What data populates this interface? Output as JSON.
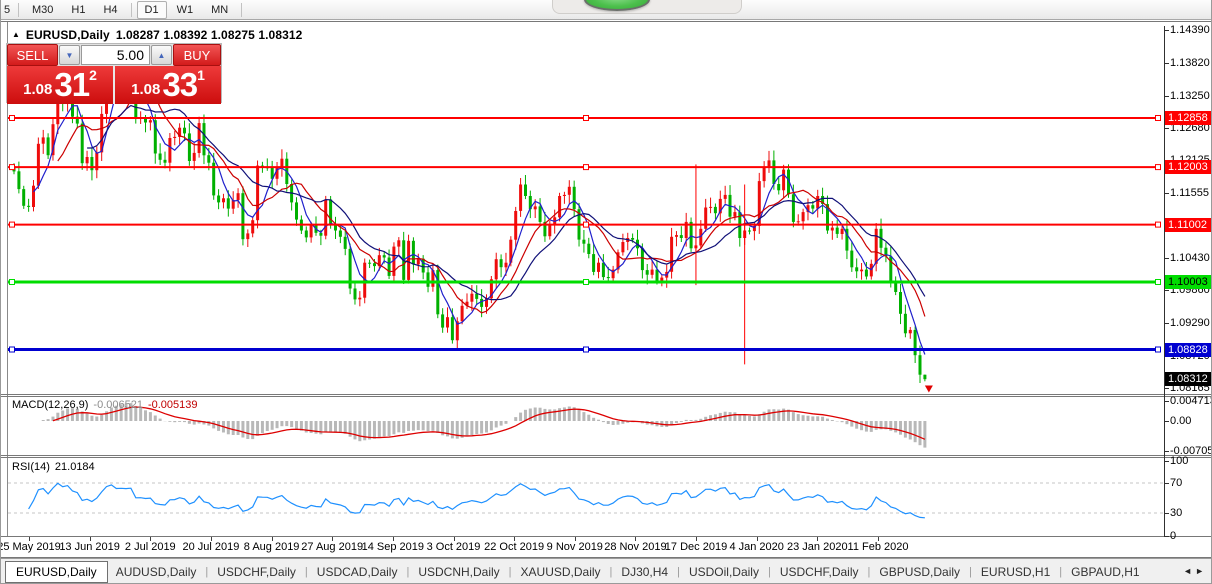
{
  "toolbar": {
    "timeframes": [
      "5",
      "M30",
      "H1",
      "H4",
      "D1",
      "W1",
      "MN"
    ],
    "active_timeframe": "D1"
  },
  "overlay": {
    "green_dot": "recording-indicator"
  },
  "chart": {
    "title": {
      "symbol": "EURUSD,Daily",
      "ohlc": "1.08287 1.08392 1.08275 1.08312"
    },
    "trade_panel": {
      "sell_label": "SELL",
      "buy_label": "BUY",
      "volume": "5.00",
      "down_arrow": "▼",
      "up_arrow": "▲",
      "sell_price_big": "1.08",
      "sell_price_main": "31",
      "sell_price_sup": "2",
      "buy_price_big": "1.08",
      "buy_price_main": "33",
      "buy_price_sup": "1"
    }
  },
  "chart_data": {
    "type": "candlestick",
    "symbol": "EURUSD",
    "timeframe": "Daily",
    "ohlc_display": {
      "open": "1.08287",
      "high": "1.08392",
      "low": "1.08275",
      "close": "1.08312"
    },
    "closes": [
      1.1193,
      1.1162,
      1.1133,
      1.1131,
      1.1168,
      1.1241,
      1.1252,
      1.1221,
      1.1275,
      1.1334,
      1.1312,
      1.1326,
      1.1288,
      1.1276,
      1.1207,
      1.1218,
      1.1195,
      1.1226,
      1.1293,
      1.1369,
      1.1399,
      1.1367,
      1.137,
      1.1367,
      1.1373,
      1.1285,
      1.1286,
      1.1278,
      1.1282,
      1.1224,
      1.1213,
      1.1208,
      1.1251,
      1.1253,
      1.1269,
      1.1259,
      1.1211,
      1.1225,
      1.1277,
      1.1221,
      1.1208,
      1.1151,
      1.1139,
      1.1146,
      1.1128,
      1.1143,
      1.1155,
      1.1075,
      1.1085,
      1.1108,
      1.1203,
      1.12,
      1.1199,
      1.118,
      1.1199,
      1.1215,
      1.1171,
      1.1139,
      1.1109,
      1.109,
      1.1078,
      1.1099,
      1.1086,
      1.1081,
      1.1144,
      1.1101,
      1.109,
      1.1079,
      1.1058,
      1.0989,
      1.097,
      1.0973,
      1.1034,
      1.1033,
      1.1028,
      1.1047,
      1.1043,
      1.1011,
      1.1062,
      1.1073,
      1.1004,
      1.1072,
      1.1031,
      1.1041,
      1.1017,
      1.0992,
      1.1021,
      1.0944,
      1.0921,
      1.0939,
      1.0899,
      1.0932,
      1.0959,
      1.0966,
      1.098,
      1.0971,
      1.0957,
      1.0972,
      1.1005,
      1.104,
      1.1026,
      1.1034,
      1.1074,
      1.1124,
      1.117,
      1.115,
      1.1127,
      1.1132,
      1.1105,
      1.108,
      1.1099,
      1.1113,
      1.115,
      1.1152,
      1.1166,
      1.1127,
      1.1074,
      1.1067,
      1.1049,
      1.1018,
      1.1034,
      1.1009,
      1.1007,
      1.1022,
      1.1052,
      1.107,
      1.1077,
      1.1074,
      1.1059,
      1.1021,
      1.1013,
      1.1022,
      1.1001,
      1.1008,
      1.1018,
      1.1079,
      1.1082,
      1.1077,
      1.1105,
      1.1059,
      1.1064,
      1.1093,
      1.113,
      1.1131,
      1.112,
      1.1145,
      1.1152,
      1.1114,
      1.1122,
      1.1077,
      1.109,
      1.1089,
      1.1098,
      1.1176,
      1.1199,
      1.1212,
      1.1171,
      1.116,
      1.1196,
      1.1153,
      1.1105,
      1.1106,
      1.1122,
      1.1134,
      1.1128,
      1.115,
      1.1136,
      1.109,
      1.1095,
      1.1084,
      1.1093,
      1.1055,
      1.1026,
      1.1019,
      1.1022,
      1.101,
      1.1032,
      1.1093,
      1.106,
      1.1045,
      1.0999,
      1.0983,
      1.0945,
      1.0911,
      1.0917,
      1.0873,
      1.0839,
      1.08312
    ],
    "x_axis_labels": [
      "25 May 2019",
      "13 Jun 2019",
      "2 Jul 2019",
      "20 Jul 2019",
      "8 Aug 2019",
      "27 Aug 2019",
      "14 Sep 2019",
      "3 Oct 2019",
      "22 Oct 2019",
      "9 Nov 2019",
      "28 Nov 2019",
      "17 Dec 2019",
      "4 Jan 2020",
      "23 Jan 2020",
      "11 Feb 2020"
    ],
    "y_axis_ticks": [
      "1.14390",
      "1.13820",
      "1.13250",
      "1.12680",
      "1.12125",
      "1.11555",
      "1.10430",
      "1.09860",
      "1.09290",
      "1.08720",
      "1.08165"
    ],
    "hlines": [
      {
        "price": 1.12858,
        "label": "1.12858",
        "color": "#ff0000",
        "text_color": "#ffffff",
        "width": 2
      },
      {
        "price": 1.12003,
        "label": "1.12003",
        "color": "#ff0000",
        "text_color": "#ffffff",
        "width": 2
      },
      {
        "price": 1.11002,
        "label": "1.11002",
        "color": "#ff0000",
        "text_color": "#ffffff",
        "width": 2
      },
      {
        "price": 1.10003,
        "label": "1.10003",
        "color": "#00dd00",
        "text_color": "#000000",
        "width": 3
      },
      {
        "price": 1.08828,
        "label": "1.08828",
        "color": "#0000d0",
        "text_color": "#ffffff",
        "width": 3
      }
    ],
    "current_price": {
      "value": 1.08312,
      "label": "1.08312",
      "bg": "#000000",
      "text_color": "#ffffff"
    },
    "spike_lines": [
      {
        "index": 140,
        "top": 1.1205,
        "bottom": 1.0995,
        "color": "#ff0000"
      },
      {
        "index": 150,
        "top": 1.117,
        "bottom": 1.0857,
        "color": "#ff0000"
      }
    ],
    "sell_arrow": {
      "index": 187,
      "price": 1.0815,
      "color": "#e00000"
    },
    "ma_lines": [
      {
        "period": 5,
        "color": "#2020cc"
      },
      {
        "period": 10,
        "color": "#cc0000"
      },
      {
        "period": 16,
        "color": "#101078"
      }
    ],
    "candle_colors": {
      "bull": "#ee0c0c",
      "bear": "#00b000"
    },
    "indicators": {
      "macd": {
        "label": "MACD(12,26,9)",
        "value_hist": "-0.006521",
        "value_signal": "-0.005139",
        "axis_ticks": [
          "0.004713",
          "0.00",
          "-0.007056"
        ],
        "hist_color": "#b8b8b8",
        "signal_color": "#dd0000"
      },
      "rsi": {
        "label": "RSI(14)",
        "value": "21.0184",
        "axis_ticks": [
          "100",
          "70",
          "30",
          "0"
        ],
        "levels": [
          70,
          30
        ],
        "line_color": "#1e90ff"
      }
    }
  },
  "tabs": {
    "items": [
      "EURUSD,Daily",
      "AUDUSD,Daily",
      "USDCHF,Daily",
      "USDCAD,Daily",
      "USDCNH,Daily",
      "XAUUSD,Daily",
      "DJ30,H4",
      "USDOil,Daily",
      "USDCHF,Daily",
      "GBPUSD,Daily",
      "EURUSD,H1",
      "GBPAUD,H1"
    ],
    "active_index": 0,
    "left_arrow": "◄",
    "right_arrow": "►"
  }
}
